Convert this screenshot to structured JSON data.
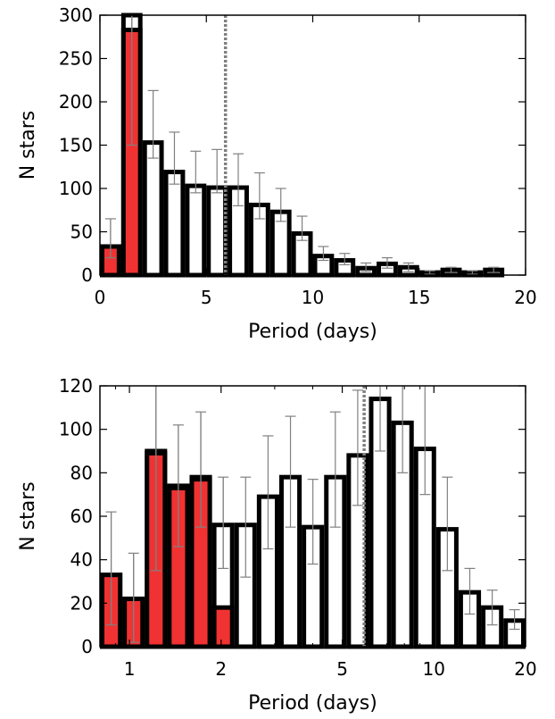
{
  "chart_data": [
    {
      "type": "bar",
      "xlabel": "Period (days)",
      "ylabel": "N stars",
      "xlim": [
        0,
        20
      ],
      "ylim": [
        0,
        300
      ],
      "xscale": "linear",
      "x_ticks": [
        0,
        5,
        10,
        15,
        20
      ],
      "y_ticks": [
        0,
        50,
        100,
        150,
        200,
        250,
        300
      ],
      "reference_line_x": 5.9,
      "colors": {
        "highlight": "#f03232",
        "bar_edge": "#000000",
        "bar_fill": "#ffffff",
        "error_bar": "#808080",
        "reference_line": "#808080"
      },
      "bins": [
        {
          "x0": 0,
          "x1": 1,
          "total": 33,
          "highlight": 33,
          "err_lo": 20,
          "err_hi": 65
        },
        {
          "x0": 1,
          "x1": 2,
          "total": 300,
          "highlight": 283,
          "err_lo": 150,
          "err_hi": 300
        },
        {
          "x0": 2,
          "x1": 3,
          "total": 153,
          "highlight": 0,
          "err_lo": 135,
          "err_hi": 213
        },
        {
          "x0": 3,
          "x1": 4,
          "total": 119,
          "highlight": 0,
          "err_lo": 105,
          "err_hi": 165
        },
        {
          "x0": 4,
          "x1": 5,
          "total": 103,
          "highlight": 0,
          "err_lo": 95,
          "err_hi": 143
        },
        {
          "x0": 5,
          "x1": 6,
          "total": 101,
          "highlight": 0,
          "err_lo": 95,
          "err_hi": 145
        },
        {
          "x0": 6,
          "x1": 7,
          "total": 101,
          "highlight": 0,
          "err_lo": 80,
          "err_hi": 140
        },
        {
          "x0": 7,
          "x1": 8,
          "total": 81,
          "highlight": 0,
          "err_lo": 65,
          "err_hi": 118
        },
        {
          "x0": 8,
          "x1": 9,
          "total": 73,
          "highlight": 0,
          "err_lo": 62,
          "err_hi": 100
        },
        {
          "x0": 9,
          "x1": 10,
          "total": 48,
          "highlight": 0,
          "err_lo": 40,
          "err_hi": 68
        },
        {
          "x0": 10,
          "x1": 11,
          "total": 22,
          "highlight": 0,
          "err_lo": 17,
          "err_hi": 33
        },
        {
          "x0": 11,
          "x1": 12,
          "total": 17,
          "highlight": 0,
          "err_lo": 12,
          "err_hi": 25
        },
        {
          "x0": 12,
          "x1": 13,
          "total": 8,
          "highlight": 0,
          "err_lo": 4,
          "err_hi": 14
        },
        {
          "x0": 13,
          "x1": 14,
          "total": 13,
          "highlight": 0,
          "err_lo": 8,
          "err_hi": 20
        },
        {
          "x0": 14,
          "x1": 15,
          "total": 9,
          "highlight": 0,
          "err_lo": 4,
          "err_hi": 14
        },
        {
          "x0": 15,
          "x1": 16,
          "total": 3,
          "highlight": 0,
          "err_lo": 1,
          "err_hi": 5
        },
        {
          "x0": 16,
          "x1": 17,
          "total": 6,
          "highlight": 0,
          "err_lo": 3,
          "err_hi": 9
        },
        {
          "x0": 17,
          "x1": 18,
          "total": 3,
          "highlight": 0,
          "err_lo": 1,
          "err_hi": 5
        },
        {
          "x0": 18,
          "x1": 19,
          "total": 6,
          "highlight": 0,
          "err_lo": 3,
          "err_hi": 9
        }
      ]
    },
    {
      "type": "bar",
      "xlabel": "Period (days)",
      "ylabel": "N stars",
      "xlim": [
        0.8,
        20
      ],
      "ylim": [
        0,
        120
      ],
      "xscale": "log",
      "x_ticks": [
        1,
        2,
        5,
        10,
        20
      ],
      "y_ticks": [
        0,
        20,
        40,
        60,
        80,
        100,
        120
      ],
      "reference_line_x": 5.9,
      "colors": {
        "highlight": "#f03232",
        "bar_edge": "#000000",
        "bar_fill": "#ffffff",
        "error_bar": "#808080",
        "reference_line": "#808080"
      },
      "bins": [
        {
          "x0": 0.8,
          "x1": 0.948,
          "total": 33,
          "highlight": 33,
          "err_lo": 10,
          "err_hi": 62
        },
        {
          "x0": 0.948,
          "x1": 1.123,
          "total": 22,
          "highlight": 22,
          "err_lo": 2,
          "err_hi": 43
        },
        {
          "x0": 1.123,
          "x1": 1.33,
          "total": 90,
          "highlight": 89,
          "err_lo": 35,
          "err_hi": 120
        },
        {
          "x0": 1.33,
          "x1": 1.576,
          "total": 74,
          "highlight": 73,
          "err_lo": 46,
          "err_hi": 102
        },
        {
          "x0": 1.576,
          "x1": 1.867,
          "total": 78,
          "highlight": 77,
          "err_lo": 55,
          "err_hi": 108
        },
        {
          "x0": 1.867,
          "x1": 2.212,
          "total": 56,
          "highlight": 18,
          "err_lo": 36,
          "err_hi": 78
        },
        {
          "x0": 2.212,
          "x1": 2.621,
          "total": 56,
          "highlight": 0,
          "err_lo": 32,
          "err_hi": 78
        },
        {
          "x0": 2.621,
          "x1": 3.105,
          "total": 69,
          "highlight": 0,
          "err_lo": 45,
          "err_hi": 97
        },
        {
          "x0": 3.105,
          "x1": 3.679,
          "total": 78,
          "highlight": 0,
          "err_lo": 55,
          "err_hi": 106
        },
        {
          "x0": 3.679,
          "x1": 4.359,
          "total": 55,
          "highlight": 0,
          "err_lo": 38,
          "err_hi": 77
        },
        {
          "x0": 4.359,
          "x1": 5.164,
          "total": 78,
          "highlight": 0,
          "err_lo": 55,
          "err_hi": 108
        },
        {
          "x0": 5.164,
          "x1": 6.118,
          "total": 88,
          "highlight": 0,
          "err_lo": 65,
          "err_hi": 118
        },
        {
          "x0": 6.118,
          "x1": 7.249,
          "total": 114,
          "highlight": 0,
          "err_lo": 90,
          "err_hi": 120
        },
        {
          "x0": 7.249,
          "x1": 8.588,
          "total": 103,
          "highlight": 0,
          "err_lo": 80,
          "err_hi": 120
        },
        {
          "x0": 8.588,
          "x1": 10.17,
          "total": 91,
          "highlight": 0,
          "err_lo": 70,
          "err_hi": 120
        },
        {
          "x0": 10.17,
          "x1": 12.05,
          "total": 54,
          "highlight": 0,
          "err_lo": 35,
          "err_hi": 78
        },
        {
          "x0": 12.05,
          "x1": 14.28,
          "total": 25,
          "highlight": 0,
          "err_lo": 15,
          "err_hi": 36
        },
        {
          "x0": 14.28,
          "x1": 16.92,
          "total": 18,
          "highlight": 0,
          "err_lo": 10,
          "err_hi": 26
        },
        {
          "x0": 16.92,
          "x1": 20,
          "total": 12,
          "highlight": 0,
          "err_lo": 8,
          "err_hi": 17
        }
      ]
    }
  ]
}
